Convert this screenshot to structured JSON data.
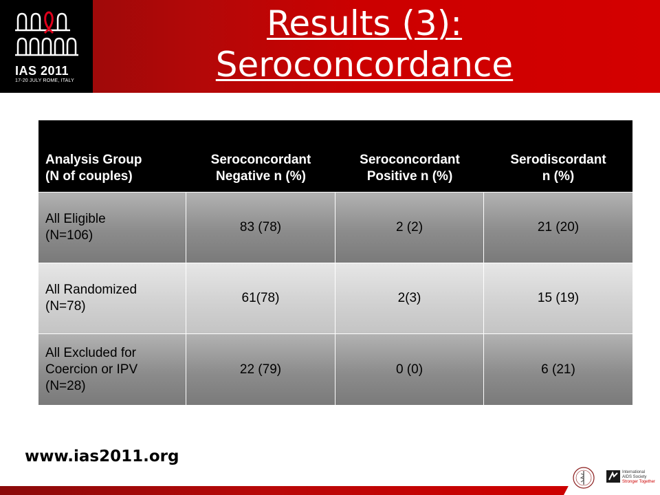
{
  "header": {
    "logo": {
      "title": "IAS 2011",
      "subtitle": "17-20 JULY ROME, ITALY",
      "icon": "colosseum-arches-with-red-ribbon"
    },
    "title_line1": "Results (3):",
    "title_line2": "Seroconcordance",
    "colors": {
      "band": "#cc0000",
      "logo_bg": "#000000"
    }
  },
  "table": {
    "headers": [
      {
        "line1": "Analysis Group",
        "line2": "(N of couples)"
      },
      {
        "line1": "Seroconcordant",
        "line2": "Negative n (%)"
      },
      {
        "line1": "Seroconcordant",
        "line2": "Positive n (%)"
      },
      {
        "line1": "Serodiscordant",
        "line2": "n (%)"
      }
    ],
    "rows": [
      {
        "group_lines": [
          "All Eligible",
          "(N=106)"
        ],
        "neg": "83 (78)",
        "pos": "2 (2)",
        "disc": "21 (20)"
      },
      {
        "group_lines": [
          "All Randomized",
          "(N=78)"
        ],
        "neg": "61(78)",
        "pos": "2(3)",
        "disc": "15 (19)"
      },
      {
        "group_lines": [
          "All Excluded for",
          "Coercion or IPV",
          "(N=28)"
        ],
        "neg": "22 (79)",
        "pos": "0 (0)",
        "disc": "6 (21)"
      }
    ]
  },
  "footer": {
    "url": "www.ias2011.org",
    "badge": {
      "line1": "International",
      "line2": "AIDS Society",
      "line3": "Stronger Together",
      "seal_icon": "caduceus-seal-icon",
      "mark_icon": "ias-mark-icon"
    }
  }
}
